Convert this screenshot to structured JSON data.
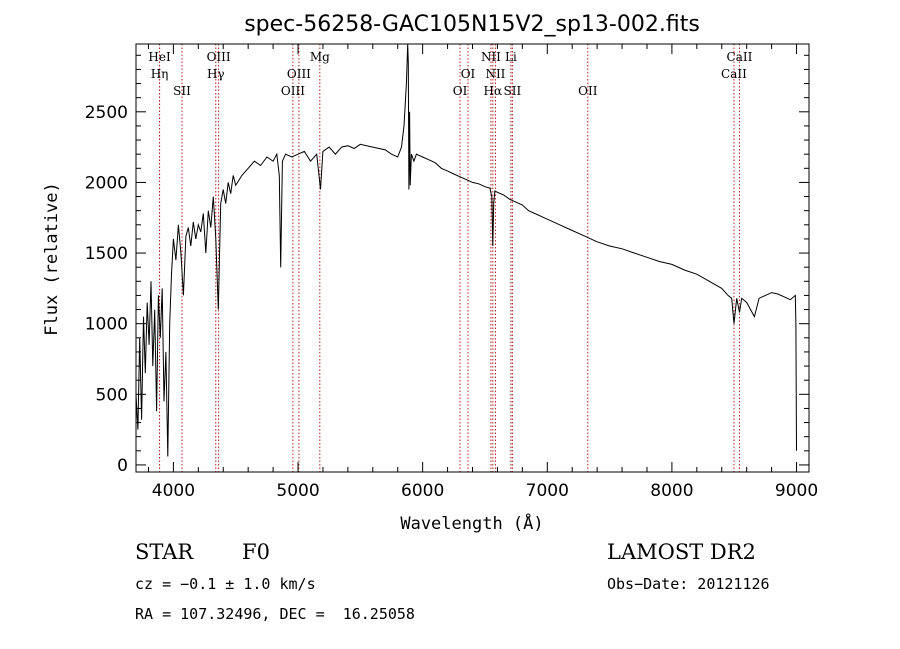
{
  "chart_data": {
    "type": "line",
    "title": "spec-56258-GAC105N15V2_sp13-002.fits",
    "xlabel": "Wavelength (Å)",
    "ylabel": "Flux (relative)",
    "xlim": [
      3700,
      9100
    ],
    "ylim": [
      -50,
      2980
    ],
    "xticks": [
      4000,
      5000,
      6000,
      7000,
      8000,
      9000
    ],
    "yticks": [
      0,
      500,
      1000,
      1500,
      2000,
      2500
    ],
    "xtick_labels": [
      "4000",
      "5000",
      "6000",
      "7000",
      "8000",
      "9000"
    ],
    "ytick_labels": [
      "0",
      "500",
      "1000",
      "1500",
      "2000",
      "2500"
    ],
    "grid": false,
    "series": [
      {
        "x": [
          3700,
          3715,
          3730,
          3745,
          3760,
          3775,
          3790,
          3805,
          3820,
          3835,
          3850,
          3865,
          3880,
          3895,
          3910,
          3925,
          3940,
          3955,
          3970,
          3985,
          4000,
          4020,
          4040,
          4060,
          4080,
          4100,
          4120,
          4140,
          4160,
          4180,
          4200,
          4220,
          4240,
          4260,
          4280,
          4300,
          4320,
          4340,
          4360,
          4380,
          4400,
          4420,
          4440,
          4460,
          4480,
          4500,
          4550,
          4600,
          4650,
          4700,
          4750,
          4800,
          4830,
          4850,
          4861,
          4875,
          4900,
          4950,
          5000,
          5050,
          5100,
          5150,
          5180,
          5200,
          5250,
          5300,
          5350,
          5400,
          5450,
          5500,
          5550,
          5600,
          5650,
          5700,
          5750,
          5800,
          5830,
          5850,
          5870,
          5880,
          5885,
          5890,
          5895,
          5900,
          5910,
          5930,
          5950,
          6000,
          6050,
          6100,
          6150,
          6200,
          6250,
          6300,
          6350,
          6400,
          6450,
          6500,
          6540,
          6555,
          6563,
          6570,
          6580,
          6600,
          6650,
          6700,
          6750,
          6800,
          6850,
          6900,
          6950,
          7000,
          7100,
          7200,
          7300,
          7400,
          7500,
          7600,
          7700,
          7800,
          7900,
          8000,
          8100,
          8200,
          8300,
          8400,
          8450,
          8480,
          8498,
          8520,
          8542,
          8560,
          8600,
          8662,
          8700,
          8750,
          8800,
          8850,
          8900,
          8950,
          8990,
          8995,
          9000
        ],
        "y": [
          500,
          250,
          900,
          320,
          1050,
          650,
          1150,
          850,
          1300,
          700,
          1100,
          380,
          1200,
          900,
          1250,
          450,
          800,
          60,
          1000,
          1350,
          1600,
          1450,
          1700,
          1500,
          1200,
          1620,
          1680,
          1550,
          1720,
          1600,
          1700,
          1650,
          1780,
          1500,
          1800,
          1680,
          1900,
          1600,
          1100,
          1850,
          1950,
          1850,
          2000,
          1920,
          2050,
          1980,
          2050,
          2100,
          2150,
          2120,
          2180,
          2150,
          2200,
          2050,
          1400,
          2150,
          2200,
          2180,
          2200,
          2220,
          2150,
          2200,
          1950,
          2220,
          2250,
          2200,
          2250,
          2260,
          2240,
          2270,
          2260,
          2250,
          2240,
          2230,
          2200,
          2180,
          2250,
          2400,
          2700,
          2990,
          2850,
          1950,
          2500,
          1980,
          2200,
          2150,
          2200,
          2180,
          2160,
          2140,
          2100,
          2080,
          2060,
          2040,
          2020,
          2000,
          1990,
          1970,
          1960,
          1900,
          1550,
          1850,
          1940,
          1930,
          1910,
          1880,
          1860,
          1840,
          1800,
          1780,
          1760,
          1740,
          1700,
          1660,
          1620,
          1580,
          1550,
          1530,
          1500,
          1470,
          1440,
          1420,
          1380,
          1350,
          1300,
          1250,
          1200,
          1180,
          1000,
          1180,
          1080,
          1180,
          1150,
          1050,
          1180,
          1200,
          1220,
          1210,
          1190,
          1170,
          1200,
          1000,
          100
        ]
      }
    ],
    "spectral_lines": [
      {
        "label": "HeI",
        "x": 3889,
        "row": 0
      },
      {
        "label": "Hη",
        "x": 3889,
        "row": 1
      },
      {
        "label": "SII",
        "x": 4069,
        "row": 2
      },
      {
        "label": "OIII",
        "x": 4363,
        "row": 0
      },
      {
        "label": "Hγ",
        "x": 4340,
        "row": 1
      },
      {
        "label": "OIII",
        "x": 5007,
        "row": 1
      },
      {
        "label": "OIII",
        "x": 4959,
        "row": 2
      },
      {
        "label": "Mg",
        "x": 5175,
        "row": 0
      },
      {
        "label": "OI",
        "x": 6364,
        "row": 1
      },
      {
        "label": "OI",
        "x": 6300,
        "row": 2
      },
      {
        "label": "NII",
        "x": 6548,
        "row": 0
      },
      {
        "label": "Li",
        "x": 6708,
        "row": 0
      },
      {
        "label": "NII",
        "x": 6584,
        "row": 1
      },
      {
        "label": "Hα",
        "x": 6563,
        "row": 2
      },
      {
        "label": "SII",
        "x": 6720,
        "row": 2
      },
      {
        "label": "OII",
        "x": 7325,
        "row": 2
      },
      {
        "label": "CaII",
        "x": 8542,
        "row": 0
      },
      {
        "label": "CaII",
        "x": 8498,
        "row": 1
      }
    ],
    "line_marker_color": "#b22222"
  },
  "info": {
    "class": "STAR",
    "subclass": "F0",
    "survey": "LAMOST DR2",
    "cz": "cz = −0.1 ± 1.0 km/s",
    "obs_date": "Obs−Date: 20121126",
    "coords": "RA = 107.32496, DEC =  16.25058"
  }
}
